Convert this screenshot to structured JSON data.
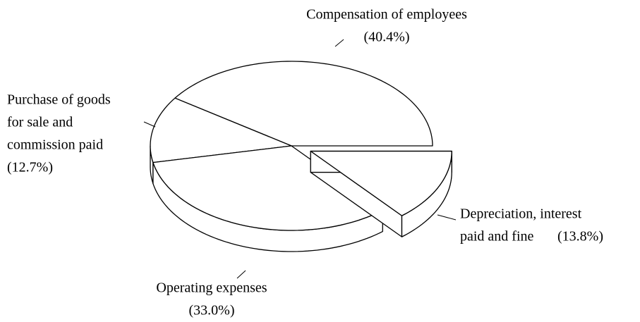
{
  "chart_data": {
    "type": "pie3d",
    "categories": [
      [
        "Compensation of employees"
      ],
      [
        "Purchase of goods",
        "for sale and",
        "commission paid"
      ],
      [
        "Operating expenses"
      ],
      [
        "Depreciation, interest",
        "paid and fine"
      ]
    ],
    "values": [
      40.4,
      12.7,
      33.0,
      13.8
    ],
    "value_labels": [
      "(40.4%)",
      "(12.7%)",
      "(33.0%)",
      "(13.8%)"
    ],
    "colors": [
      "#ffffff",
      "#ffffff",
      "#ffffff",
      "#ffffff"
    ],
    "exploded": [
      false,
      false,
      false,
      true
    ]
  }
}
